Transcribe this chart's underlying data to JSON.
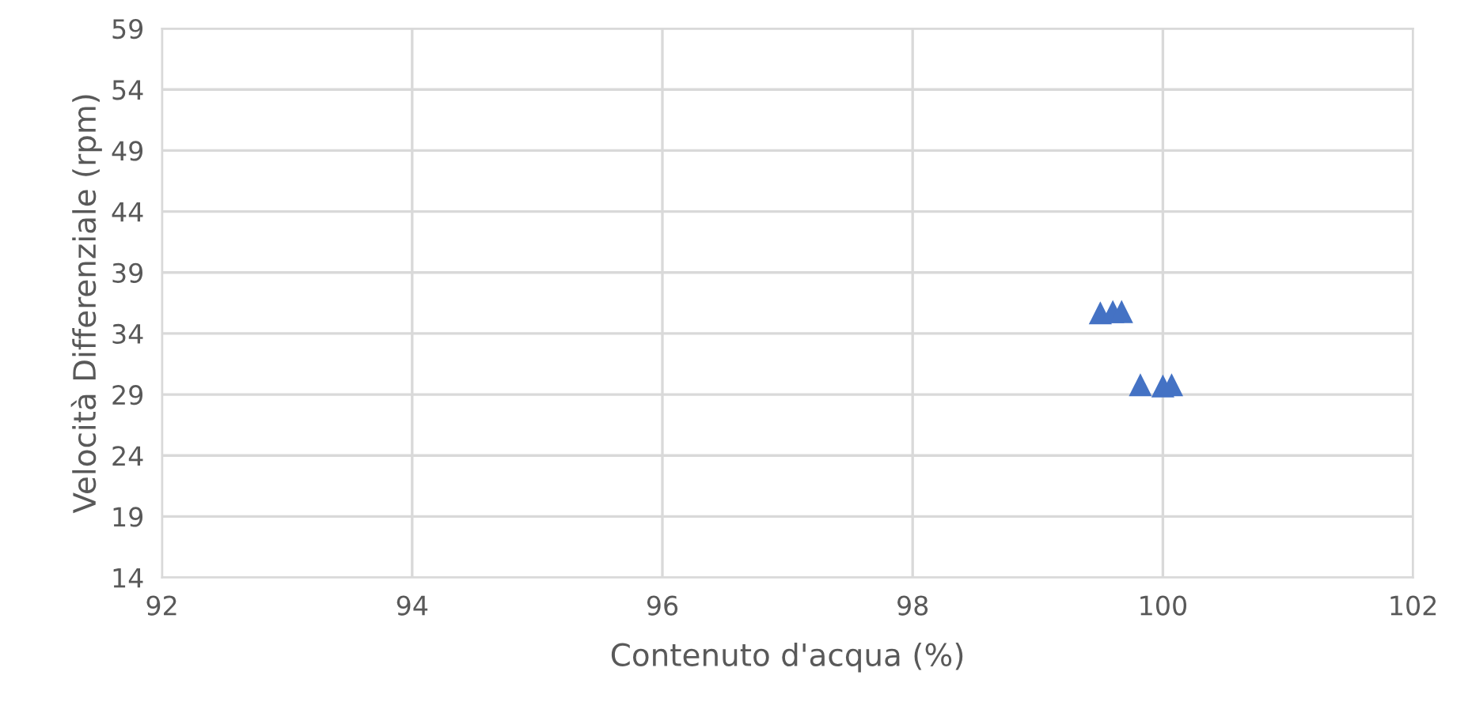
{
  "chart_data": {
    "type": "scatter",
    "xlabel": "Contenuto d'acqua (%)",
    "ylabel": "Velocità Differenziale (rpm)",
    "x": [
      99.5,
      99.6,
      99.67,
      99.82,
      100.0,
      100.07
    ],
    "series": [
      {
        "color": "#4472c4",
        "values": [
          35.7,
          35.8,
          35.8,
          29.8,
          29.7,
          29.8
        ]
      }
    ],
    "marker": "triangle",
    "grid": true,
    "xlim": [
      92,
      102
    ],
    "xticks": [
      92,
      94,
      96,
      98,
      100,
      102
    ],
    "ylim": [
      14,
      59
    ],
    "yticks": [
      14,
      19,
      24,
      29,
      34,
      39,
      44,
      49,
      54,
      59
    ]
  }
}
